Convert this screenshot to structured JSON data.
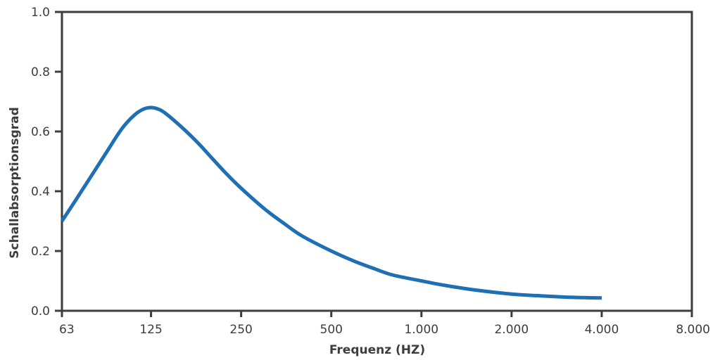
{
  "chart_data": {
    "type": "line",
    "title": "",
    "xlabel": "Frequenz (HZ)",
    "ylabel": "Schallabsorptionsgrad",
    "x_scale": "log2",
    "xlim": [
      63,
      8000
    ],
    "ylim": [
      0.0,
      1.0
    ],
    "x_ticks": [
      {
        "value": 63,
        "label": "63"
      },
      {
        "value": 125,
        "label": "125"
      },
      {
        "value": 250,
        "label": "250"
      },
      {
        "value": 500,
        "label": "500"
      },
      {
        "value": 1000,
        "label": "1.000"
      },
      {
        "value": 2000,
        "label": "2.000"
      },
      {
        "value": 4000,
        "label": "4.000"
      },
      {
        "value": 8000,
        "label": "8.000"
      }
    ],
    "y_ticks": [
      {
        "value": 0.0,
        "label": "0.0"
      },
      {
        "value": 0.2,
        "label": "0.2"
      },
      {
        "value": 0.4,
        "label": "0.4"
      },
      {
        "value": 0.6,
        "label": "0.6"
      },
      {
        "value": 0.8,
        "label": "0.8"
      },
      {
        "value": 1.0,
        "label": "1.0"
      }
    ],
    "grid": false,
    "legend": "none",
    "series": [
      {
        "color": "#1f6fb4",
        "points": [
          [
            63,
            0.3
          ],
          [
            70,
            0.37
          ],
          [
            80,
            0.46
          ],
          [
            90,
            0.54
          ],
          [
            100,
            0.61
          ],
          [
            110,
            0.655
          ],
          [
            118,
            0.675
          ],
          [
            125,
            0.68
          ],
          [
            132,
            0.675
          ],
          [
            140,
            0.66
          ],
          [
            160,
            0.61
          ],
          [
            180,
            0.56
          ],
          [
            200,
            0.51
          ],
          [
            225,
            0.455
          ],
          [
            250,
            0.41
          ],
          [
            300,
            0.34
          ],
          [
            350,
            0.29
          ],
          [
            400,
            0.25
          ],
          [
            500,
            0.2
          ],
          [
            600,
            0.165
          ],
          [
            700,
            0.14
          ],
          [
            800,
            0.12
          ],
          [
            1000,
            0.1
          ],
          [
            1200,
            0.085
          ],
          [
            1500,
            0.07
          ],
          [
            2000,
            0.056
          ],
          [
            2500,
            0.05
          ],
          [
            3000,
            0.046
          ],
          [
            3500,
            0.044
          ],
          [
            4000,
            0.043
          ]
        ]
      }
    ]
  },
  "colors": {
    "axis": "#3d3d3f",
    "line": "#1f6fb4",
    "background": "#ffffff"
  }
}
